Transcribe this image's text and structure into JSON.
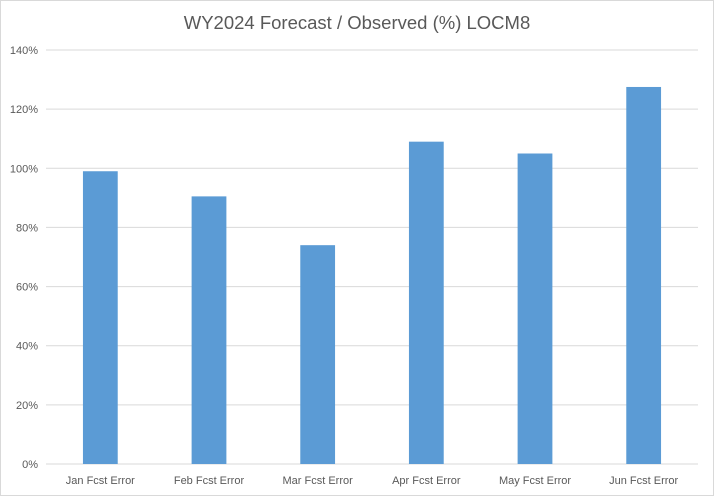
{
  "chart_data": {
    "type": "bar",
    "title": "WY2024 Forecast / Observed (%) LOCM8",
    "categories": [
      "Jan Fcst Error",
      "Feb Fcst Error",
      "Mar Fcst Error",
      "Apr Fcst Error",
      "May Fcst Error",
      "Jun Fcst Error"
    ],
    "values": [
      99,
      90.5,
      74,
      109,
      105,
      127.5
    ],
    "ylim": [
      0,
      140
    ],
    "yticks": [
      0,
      20,
      40,
      60,
      80,
      100,
      120,
      140
    ],
    "ytick_labels": [
      "0%",
      "20%",
      "40%",
      "60%",
      "80%",
      "100%",
      "120%",
      "140%"
    ],
    "grid": true,
    "legend": "none",
    "bar_color": "#5b9bd5",
    "grid_color": "#d9d9d9"
  }
}
